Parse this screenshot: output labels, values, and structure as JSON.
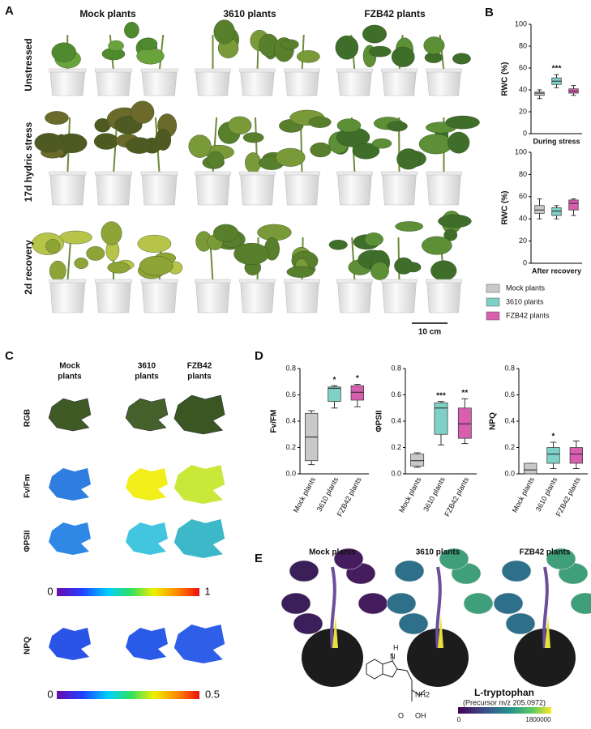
{
  "panel_labels": [
    "A",
    "B",
    "C",
    "D",
    "E"
  ],
  "panel_a": {
    "columns": [
      "Mock plants",
      "3610 plants",
      "FZB42 plants"
    ],
    "rows": [
      "Unstressed",
      "17d hydric stress",
      "2d recovery"
    ],
    "scale_bar": "10 cm"
  },
  "panel_c": {
    "columns": [
      [
        "Mock",
        "plants"
      ],
      [
        "3610",
        "plants"
      ],
      [
        "FZB42",
        "plants"
      ]
    ],
    "rows": [
      "RGB",
      "Fv/Fm",
      "ΦPSII",
      "NPQ"
    ],
    "colorbars": [
      {
        "min": 0,
        "max": 1
      },
      {
        "min": 0,
        "max": 0.5
      }
    ]
  },
  "panel_e": {
    "columns": [
      "Mock plants",
      "3610 plants",
      "FZB42 plants"
    ],
    "compound": "L-tryptophan",
    "precursor": "(Precursor m/z 205.0972)",
    "colorbar": {
      "min": 0,
      "max": 1800000
    },
    "molecule_labels": {
      "h": "H",
      "n": "N",
      "nh2": "NH2",
      "oh": "OH",
      "o": "O"
    }
  },
  "chart_data": [
    {
      "type": "box",
      "y_label": "RWC (%)",
      "x_label": "During stress",
      "ylim": [
        0,
        100
      ],
      "yticks": [
        0,
        20,
        40,
        60,
        80,
        100
      ],
      "colors": [
        "#c9c9c9",
        "#7fd0c6",
        "#d85fae"
      ],
      "legend": [
        "Mock plants",
        "3610 plants",
        "FZB42 plants"
      ],
      "min": [
        32,
        42,
        35
      ],
      "q1": [
        35,
        45,
        37
      ],
      "median": [
        37,
        48,
        39
      ],
      "q3": [
        38,
        51,
        41
      ],
      "max": [
        40,
        54,
        44
      ],
      "significance": [
        null,
        "***",
        null
      ]
    },
    {
      "type": "box",
      "y_label": "RWC (%)",
      "x_label": "After recovery",
      "ylim": [
        0,
        100
      ],
      "yticks": [
        0,
        20,
        40,
        60,
        80,
        100
      ],
      "colors": [
        "#c9c9c9",
        "#7fd0c6",
        "#d85fae"
      ],
      "min": [
        40,
        40,
        43
      ],
      "q1": [
        45,
        43,
        48
      ],
      "median": [
        48,
        47,
        54
      ],
      "q3": [
        52,
        50,
        57
      ],
      "max": [
        58,
        52,
        58
      ],
      "significance": [
        null,
        null,
        null
      ]
    },
    {
      "type": "box",
      "y_label": "Fv/FM",
      "categories": [
        "Mock plants",
        "3610 plants",
        "FZB42 plants"
      ],
      "ylim": [
        0,
        0.8
      ],
      "yticks": [
        {
          "value": 0,
          "label": "0.0"
        },
        0.2,
        0.4,
        0.6,
        0.8
      ],
      "colors": [
        "#c9c9c9",
        "#7fd0c6",
        "#d85fae"
      ],
      "min": [
        0.07,
        0.5,
        0.51
      ],
      "q1": [
        0.1,
        0.55,
        0.56
      ],
      "median": [
        0.28,
        0.65,
        0.62
      ],
      "q3": [
        0.46,
        0.66,
        0.67
      ],
      "max": [
        0.48,
        0.67,
        0.68
      ],
      "significance": [
        null,
        "*",
        "*"
      ]
    },
    {
      "type": "box",
      "y_label": "ΦPSII",
      "categories": [
        "Mock plants",
        "3610 plants",
        "FZB42 plants"
      ],
      "ylim": [
        0,
        0.8
      ],
      "yticks": [
        {
          "value": 0,
          "label": "0.0"
        },
        0.2,
        0.4,
        0.6,
        0.8
      ],
      "colors": [
        "#c9c9c9",
        "#7fd0c6",
        "#d85fae"
      ],
      "min": [
        0.05,
        0.22,
        0.23
      ],
      "q1": [
        0.06,
        0.3,
        0.27
      ],
      "median": [
        0.1,
        0.5,
        0.38
      ],
      "q3": [
        0.15,
        0.54,
        0.5
      ],
      "max": [
        0.16,
        0.55,
        0.57
      ],
      "significance": [
        null,
        "***",
        "**"
      ]
    },
    {
      "type": "box",
      "y_label": "NPQ",
      "categories": [
        "Mock plants",
        "3610 plants",
        "FZB42 plants"
      ],
      "ylim": [
        0,
        0.8
      ],
      "yticks": [
        {
          "value": 0,
          "label": "0.0"
        },
        0.2,
        0.4,
        0.6,
        0.8
      ],
      "colors": [
        "#c9c9c9",
        "#7fd0c6",
        "#d85fae"
      ],
      "min": [
        0,
        0.04,
        0.04
      ],
      "q1": [
        0,
        0.08,
        0.08
      ],
      "median": [
        0.03,
        0.15,
        0.15
      ],
      "q3": [
        0.08,
        0.2,
        0.2
      ],
      "max": [
        0.08,
        0.24,
        0.25
      ],
      "significance": [
        null,
        "*",
        null
      ]
    }
  ]
}
